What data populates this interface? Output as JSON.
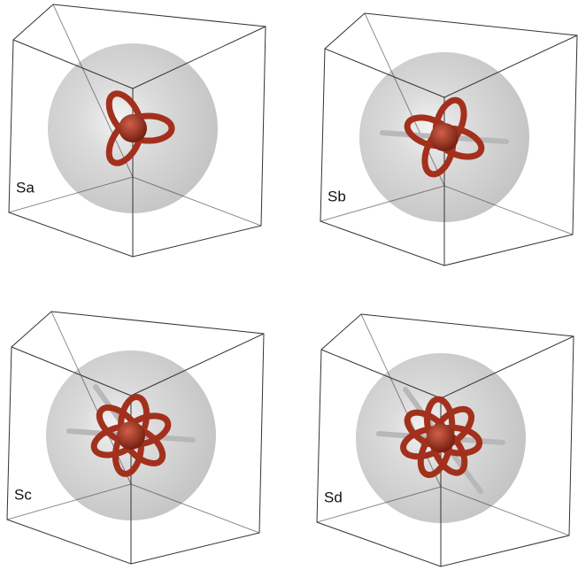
{
  "panels": [
    {
      "label": "Sa"
    },
    {
      "label": "Sb"
    },
    {
      "label": "Sc"
    },
    {
      "label": "Sd"
    }
  ]
}
